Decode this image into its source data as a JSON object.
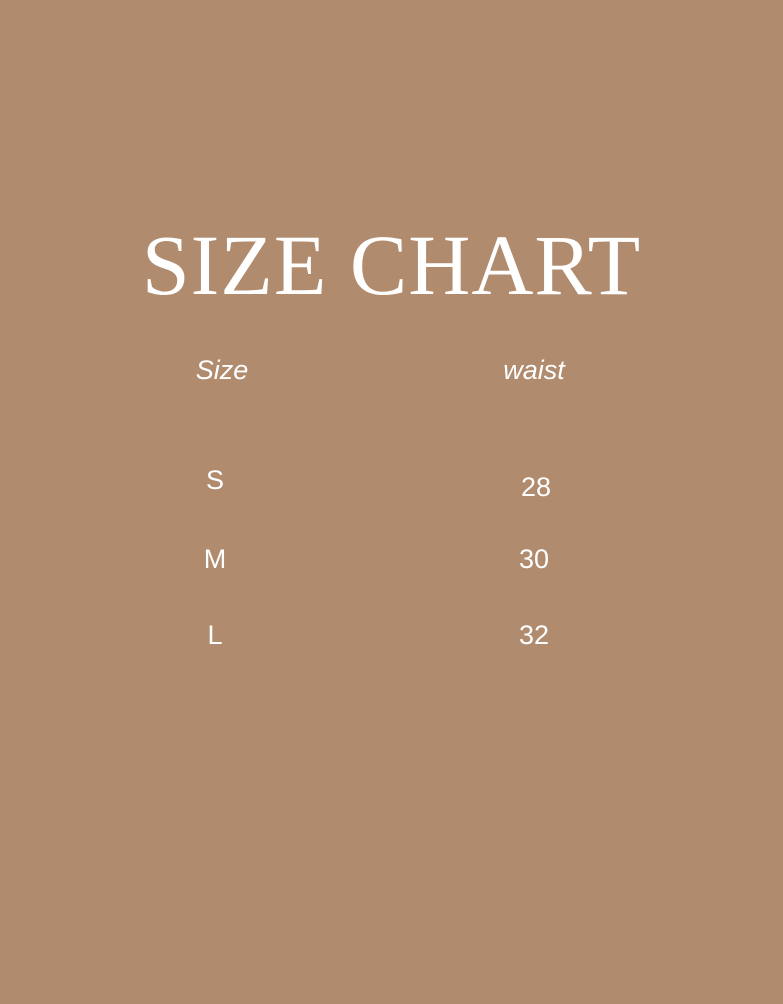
{
  "title": "SIZE CHART",
  "headers": [
    "Size",
    "waist"
  ],
  "rows": [
    {
      "size": "S",
      "waist": "28"
    },
    {
      "size": "M",
      "waist": "30"
    },
    {
      "size": "L",
      "waist": "32"
    }
  ],
  "colors": {
    "background": "#b08b6e",
    "text": "#ffffff"
  }
}
